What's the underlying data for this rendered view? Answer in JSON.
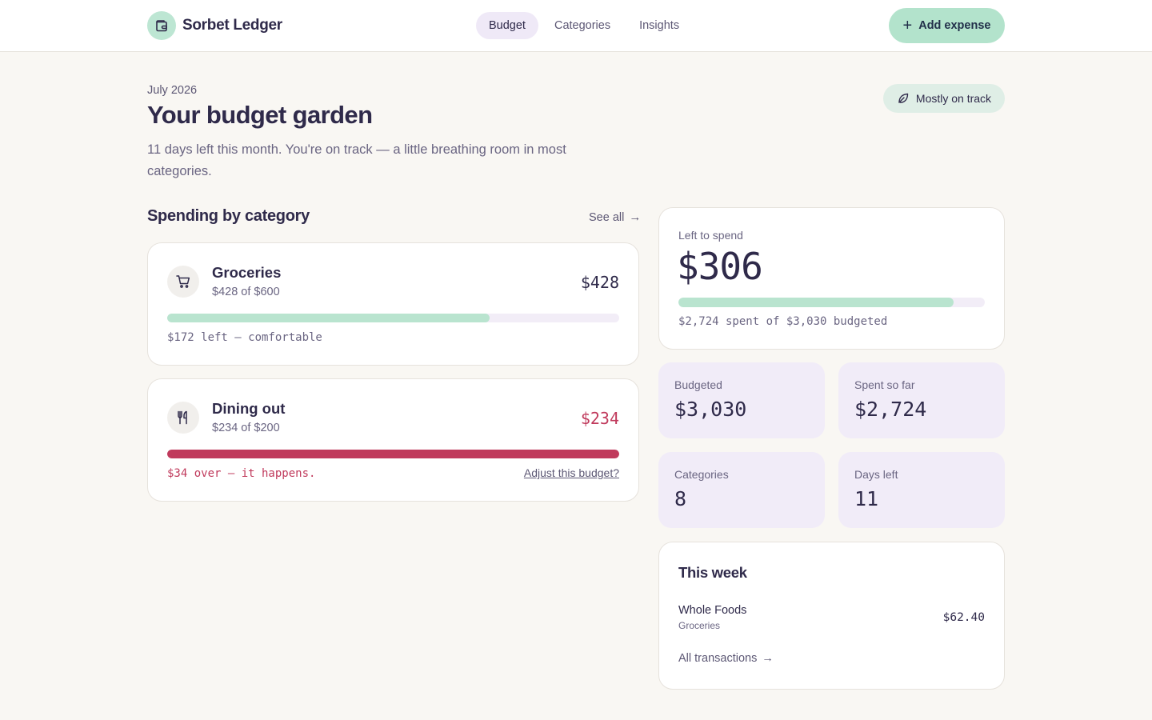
{
  "app": {
    "name": "Sorbet Ledger",
    "logo_icon": "wallet-icon",
    "brand_color": "#bde6d3"
  },
  "nav": {
    "items": [
      {
        "label": "Budget",
        "active": true
      },
      {
        "label": "Categories",
        "active": false
      },
      {
        "label": "Insights",
        "active": false
      }
    ]
  },
  "actions": {
    "add_expense_label": "Add expense",
    "add_expense_icon": "plus-icon",
    "accent": "#b3e3cc"
  },
  "hero": {
    "eyebrow": "July 2026",
    "title": "Your budget garden",
    "subtitle": "11 days left this month. You're on track — a little breathing room in most categories.",
    "status": "Mostly on track",
    "status_icon": "leaf-icon"
  },
  "spending": {
    "title": "Spending by category",
    "see_all": "See all",
    "categories": [
      {
        "name": "Groceries",
        "icon": "cart-icon",
        "spent_of": "$428 of $600",
        "amount": "$428",
        "progress": 0.713,
        "note": "$172 left — comfortable",
        "over": false
      },
      {
        "name": "Dining out",
        "icon": "fork-knife-icon",
        "spent_of": "$234 of $200",
        "amount": "$234",
        "progress": 1.0,
        "note": "$34 over — it happens.",
        "over": true,
        "action": "Adjust this budget?"
      }
    ],
    "over_color": "#c03a5c"
  },
  "summary": {
    "left_label": "Left to spend",
    "left_value": "$306",
    "progress": 0.899,
    "left_note": "$2,724 spent of $3,030 budgeted",
    "stats": [
      {
        "label": "Budgeted",
        "value": "$3,030"
      },
      {
        "label": "Spent so far",
        "value": "$2,724"
      },
      {
        "label": "Categories",
        "value": "8"
      },
      {
        "label": "Days left",
        "value": "11"
      }
    ]
  },
  "week": {
    "title": "This week",
    "transactions": [
      {
        "name": "Whole Foods",
        "category": "Groceries",
        "amount": "$62.40"
      }
    ],
    "all_link": "All transactions"
  }
}
